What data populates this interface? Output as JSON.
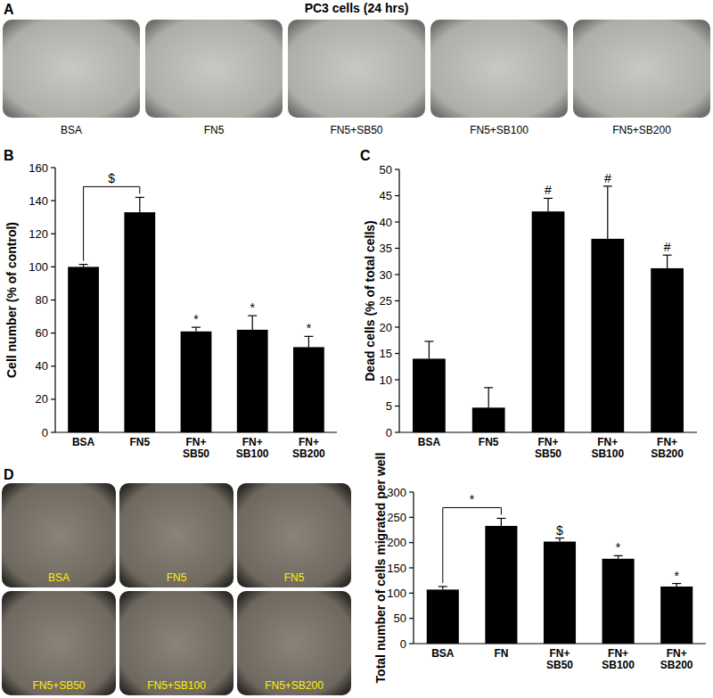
{
  "figure": {
    "title": "PC3 cells (24 hrs)",
    "panel_labels": [
      "A",
      "B",
      "C",
      "D"
    ],
    "images_a": [
      "BSA",
      "FN5",
      "FN5+SB50",
      "FN5+SB100",
      "FN5+SB200"
    ],
    "images_d": [
      "BSA",
      "FN5",
      "FN5",
      "FN5+SB50",
      "FN5+SB100",
      "FN5+SB200"
    ]
  },
  "chart_data": [
    {
      "type": "bar",
      "ylabel": "Cell number (% of control)",
      "categories": [
        "BSA",
        "FN5",
        "FN+\nSB50",
        "FN+\nSB100",
        "FN+\nSB200"
      ],
      "values": [
        100,
        133,
        61,
        62,
        51.5
      ],
      "errors": [
        1.5,
        9,
        2.5,
        8.5,
        6.5
      ],
      "color": "#000000",
      "ylim": [
        0,
        160
      ],
      "yticks": [
        0,
        20,
        40,
        60,
        80,
        100,
        120,
        140,
        160
      ],
      "annotations": [
        {
          "text": "$",
          "from": 0,
          "to": 1
        },
        {
          "text": "*",
          "index": 2
        },
        {
          "text": "*",
          "index": 3
        },
        {
          "text": "*",
          "index": 4
        }
      ]
    },
    {
      "type": "bar",
      "ylabel": "Dead cells (% of total cells)",
      "categories": [
        "BSA",
        "FN5",
        "FN+\nSB50",
        "FN+\nSB100",
        "FN+\nSB200"
      ],
      "values": [
        14,
        4.7,
        42,
        36.8,
        31.2
      ],
      "errors": [
        3.3,
        3.8,
        2.5,
        10,
        2.5
      ],
      "color": "#000000",
      "ylim": [
        0,
        50
      ],
      "yticks": [
        0,
        5,
        10,
        15,
        20,
        25,
        30,
        35,
        40,
        45,
        50
      ],
      "annotations": [
        {
          "text": "#",
          "index": 2
        },
        {
          "text": "#",
          "index": 3
        },
        {
          "text": "#",
          "index": 4
        }
      ]
    },
    {
      "type": "bar",
      "ylabel": "Total number of cells migrated per well",
      "categories": [
        "BSA",
        "FN",
        "FN+\nSB50",
        "FN+\nSB100",
        "FN+\nSB200"
      ],
      "values": [
        107,
        233,
        202,
        168,
        113
      ],
      "errors": [
        6,
        15,
        7,
        6,
        6
      ],
      "color": "#000000",
      "ylim": [
        0,
        300
      ],
      "yticks": [
        0,
        50,
        100,
        150,
        200,
        250,
        300
      ],
      "annotations": [
        {
          "text": "*",
          "from": 0,
          "to": 1
        },
        {
          "text": "$",
          "index": 2
        },
        {
          "text": "*",
          "index": 3
        },
        {
          "text": "*",
          "index": 4
        }
      ]
    }
  ]
}
